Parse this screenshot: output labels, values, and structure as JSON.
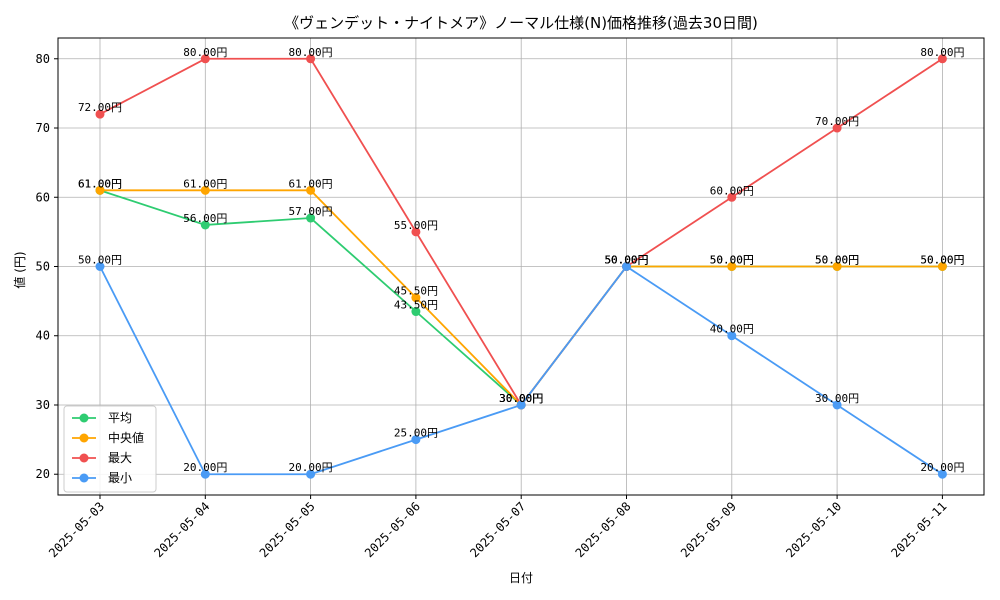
{
  "chart_data": {
    "type": "line",
    "title": "《ヴェンデット・ナイトメア》ノーマル仕様(N)価格推移(過去30日間)",
    "xlabel": "日付",
    "ylabel": "値 (円)",
    "categories": [
      "2025-05-03",
      "2025-05-04",
      "2025-05-05",
      "2025-05-06",
      "2025-05-07",
      "2025-05-08",
      "2025-05-09",
      "2025-05-10",
      "2025-05-11"
    ],
    "ylim": [
      17,
      83
    ],
    "yticks": [
      20,
      30,
      40,
      50,
      60,
      70,
      80
    ],
    "grid": true,
    "legend_position": "lower-left",
    "label_suffix": "円",
    "series": [
      {
        "name": "平均",
        "color": "#2ecc71",
        "values": [
          61,
          56,
          57,
          43.5,
          30,
          50,
          50,
          50,
          50
        ]
      },
      {
        "name": "中央値",
        "color": "#ffa500",
        "values": [
          61,
          61,
          61,
          45.5,
          30,
          50,
          50,
          50,
          50
        ]
      },
      {
        "name": "最大",
        "color": "#f05050",
        "values": [
          72,
          80,
          80,
          55,
          30,
          50,
          60,
          70,
          80
        ]
      },
      {
        "name": "最小",
        "color": "#4a9bf5",
        "values": [
          50,
          20,
          20,
          25,
          30,
          50,
          40,
          30,
          20
        ]
      }
    ]
  }
}
